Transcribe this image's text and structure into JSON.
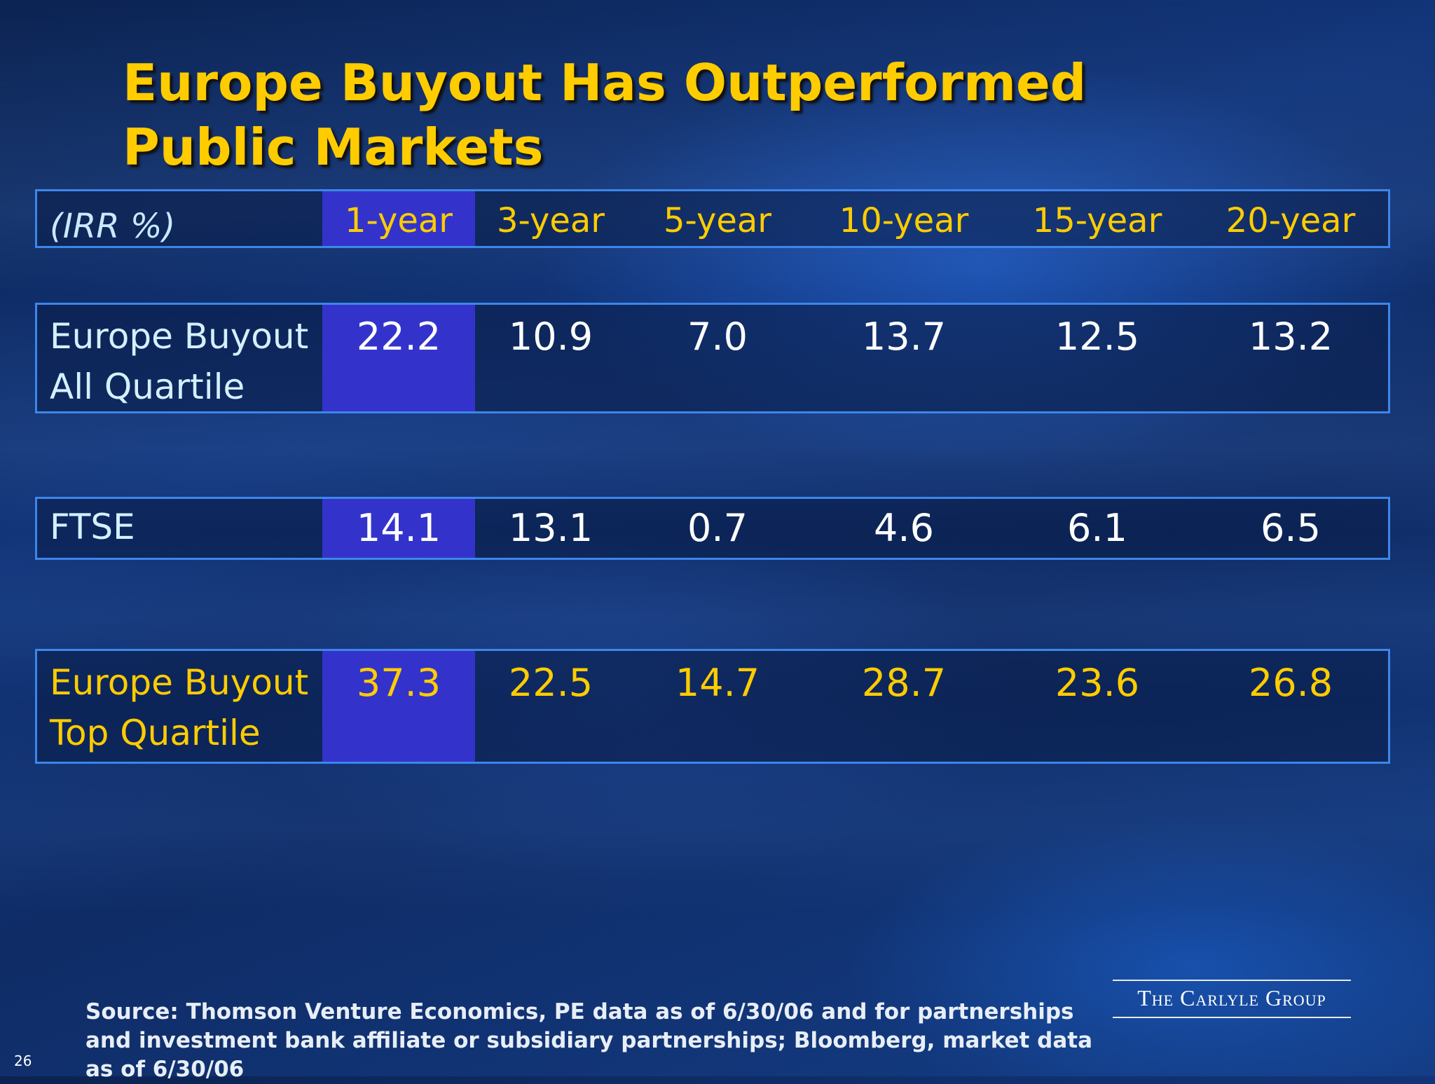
{
  "slide": {
    "title": "Europe Buyout Has Outperformed Public Markets",
    "page_number": "26",
    "source": "Source: Thomson Venture Economics, PE data as of 6/30/06 and for partnerships and investment bank affiliate or subsidiary partnerships; Bloomberg, market data as of 6/30/06",
    "logo_text": "The Carlyle Group"
  },
  "table": {
    "row_header_label": "(IRR %)",
    "columns": [
      "1-year",
      "3-year",
      "5-year",
      "10-year",
      "15-year",
      "20-year"
    ],
    "rows": [
      {
        "label_line1": "Europe Buyout",
        "label_line2": "All Quartile",
        "values": [
          "22.2",
          "10.9",
          "7.0",
          "13.7",
          "12.5",
          "13.2"
        ]
      },
      {
        "label_line1": "FTSE",
        "label_line2": "",
        "values": [
          "14.1",
          "13.1",
          "0.7",
          "4.6",
          "6.1",
          "6.5"
        ]
      },
      {
        "label_line1": "Europe Buyout",
        "label_line2": "Top Quartile",
        "values": [
          "37.3",
          "22.5",
          "14.7",
          "28.7",
          "23.6",
          "26.8"
        ]
      }
    ],
    "highlight_column": "1-year"
  },
  "colors": {
    "title": "#ffcc00",
    "highlight_column_fill": "#3333cc",
    "band_border": "#3d86ea",
    "top_quartile_text": "#ffcc00"
  }
}
